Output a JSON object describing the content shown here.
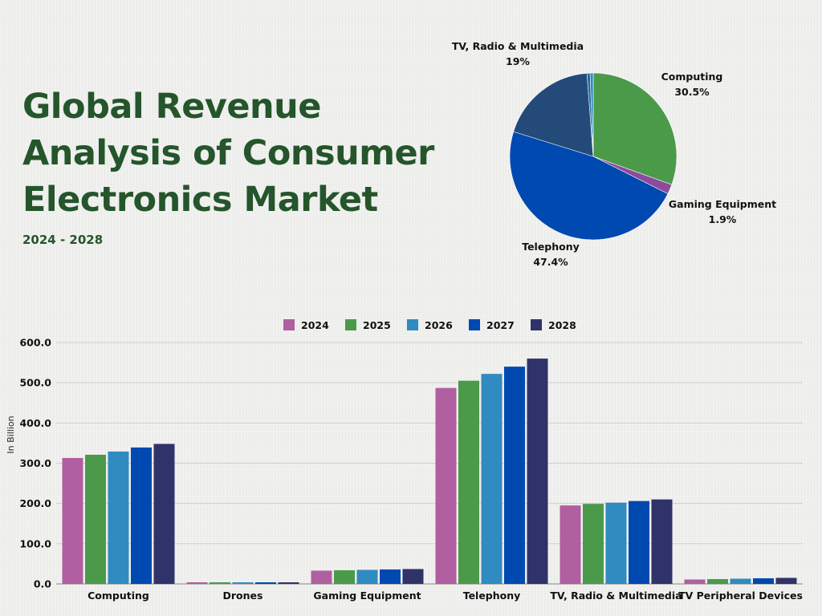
{
  "page": {
    "title": "Global Revenue Analysis of Consumer Electronics Market",
    "subtitle": "2024 - 2028"
  },
  "chart_data": [
    {
      "type": "pie",
      "slices": [
        {
          "label": "Computing",
          "value": 30.5,
          "display": "30.5%",
          "color": "#4a9a4a"
        },
        {
          "label": "Gaming Equipment",
          "value": 1.9,
          "display": "1.9%",
          "color": "#8e4a9c"
        },
        {
          "label": "Telephony",
          "value": 47.4,
          "display": "47.4%",
          "color": "#0049b0"
        },
        {
          "label": "TV, Radio & Multimedia",
          "value": 19,
          "display": "19%",
          "color": "#234a78"
        },
        {
          "label": "",
          "value": 0.6,
          "display": "",
          "color": "#1a6aa0"
        },
        {
          "label": "",
          "value": 0.6,
          "display": "",
          "color": "#2f8bc0"
        }
      ]
    },
    {
      "type": "bar",
      "ylabel": "In Billion",
      "ylim": [
        0,
        600
      ],
      "yticks": [
        "0.0",
        "100.0",
        "200.0",
        "300.0",
        "400.0",
        "500.0",
        "600.0"
      ],
      "categories": [
        "Computing",
        "Drones",
        "Gaming Equipment",
        "Telephony",
        "TV, Radio & Multimedia",
        "TV Peripheral Devices"
      ],
      "series": [
        {
          "name": "2024",
          "color": "#b05fa0",
          "values": [
            313,
            4,
            33,
            487,
            195,
            11
          ]
        },
        {
          "name": "2025",
          "color": "#4a9a4a",
          "values": [
            321,
            4,
            34,
            505,
            199,
            12
          ]
        },
        {
          "name": "2026",
          "color": "#2f8bc0",
          "values": [
            329,
            4,
            35,
            522,
            202,
            13
          ]
        },
        {
          "name": "2027",
          "color": "#0049b0",
          "values": [
            339,
            4,
            36,
            540,
            206,
            14
          ]
        },
        {
          "name": "2028",
          "color": "#30336a",
          "values": [
            348,
            4,
            37,
            560,
            210,
            15
          ]
        }
      ],
      "grid": true,
      "legend": "top-center"
    }
  ]
}
